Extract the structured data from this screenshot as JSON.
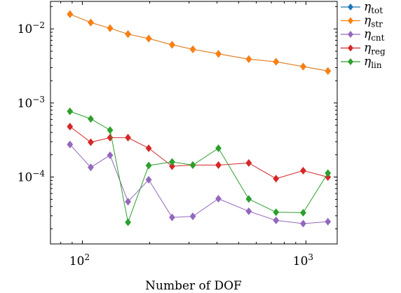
{
  "chart_data": {
    "type": "line",
    "title": "",
    "xlabel": "Number of DOF",
    "ylabel": "",
    "x_scale": "log",
    "y_scale": "log",
    "xlim": [
      72,
      1380
    ],
    "ylim": [
      1.25e-05,
      0.0235
    ],
    "grid": false,
    "legend_position": "outside-right-top",
    "x_ticks": [
      {
        "value": 100,
        "base": "10",
        "exp": "2"
      },
      {
        "value": 1000,
        "base": "10",
        "exp": "3"
      }
    ],
    "y_ticks": [
      {
        "value": 0.01,
        "base": "10",
        "exp": "−2"
      },
      {
        "value": 0.001,
        "base": "10",
        "exp": "−3"
      },
      {
        "value": 0.0001,
        "base": "10",
        "exp": "−4"
      }
    ],
    "x": [
      88,
      109,
      133,
      160,
      198,
      252,
      312,
      406,
      555,
      735,
      972,
      1254
    ],
    "series": [
      {
        "name": "η",
        "sub": "tot",
        "color": "#1f77b4",
        "values": [
          0.0158,
          0.0122,
          0.0102,
          0.0085,
          0.0074,
          0.0061,
          0.0053,
          0.0046,
          0.0039,
          0.0036,
          0.0031,
          0.0027
        ]
      },
      {
        "name": "η",
        "sub": "str",
        "color": "#ff7f0e",
        "values": [
          0.0158,
          0.0122,
          0.0102,
          0.0085,
          0.0074,
          0.0061,
          0.0053,
          0.0046,
          0.0039,
          0.0036,
          0.0031,
          0.0027
        ]
      },
      {
        "name": "η",
        "sub": "cnt",
        "color": "#9467bd",
        "values": [
          0.000275,
          0.000135,
          0.000197,
          4.65e-05,
          9.2e-05,
          2.85e-05,
          2.95e-05,
          5.1e-05,
          3.45e-05,
          2.6e-05,
          2.35e-05,
          2.5e-05
        ]
      },
      {
        "name": "η",
        "sub": "reg",
        "color": "#d62728",
        "values": [
          0.00048,
          0.000295,
          0.00034,
          0.00034,
          0.000245,
          0.00014,
          0.000145,
          0.000145,
          0.000155,
          9.5e-05,
          0.000122,
          0.0001
        ]
      },
      {
        "name": "η",
        "sub": "lin",
        "color": "#2ca02c",
        "values": [
          0.00077,
          0.00061,
          0.00043,
          2.45e-05,
          0.000143,
          0.00016,
          0.000145,
          0.000245,
          5.05e-05,
          3.35e-05,
          3.3e-05,
          0.000113
        ]
      }
    ]
  }
}
